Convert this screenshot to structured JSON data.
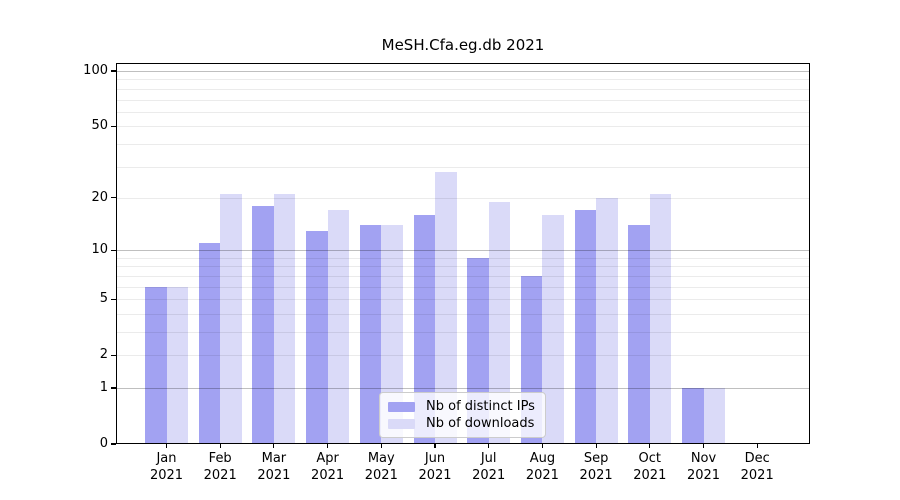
{
  "figure_title": "MeSH.Cfa.eg.db 2021",
  "chart_data": {
    "type": "bar",
    "title": "MeSH.Cfa.eg.db 2021",
    "categories": [
      "Jan",
      "Feb",
      "Mar",
      "Apr",
      "May",
      "Jun",
      "Jul",
      "Aug",
      "Sep",
      "Oct",
      "Nov",
      "Dec"
    ],
    "category_year": "2021",
    "series": [
      {
        "name": "Nb of distinct IPs",
        "color": "#a2a2f2",
        "values": [
          6,
          11,
          18,
          13,
          14,
          16,
          9,
          7,
          17,
          14,
          1,
          0
        ]
      },
      {
        "name": "Nb of downloads",
        "color": "#dadaf8",
        "values": [
          6,
          21,
          21,
          17,
          14,
          28,
          19,
          16,
          20,
          21,
          1,
          0
        ]
      }
    ],
    "xlabel": "",
    "ylabel": "",
    "y_scale": "log1p",
    "ylim": [
      0,
      111
    ],
    "y_ticks": [
      0,
      1,
      2,
      5,
      10,
      20,
      50,
      100
    ],
    "y_major_gridlines": [
      1,
      10,
      100
    ],
    "y_minor_gridlines": [
      2,
      3,
      4,
      5,
      6,
      7,
      8,
      9,
      20,
      30,
      40,
      50,
      60,
      70,
      80,
      90
    ],
    "grid": "on",
    "legend_position": "lower center"
  },
  "legend": {
    "items": [
      {
        "label": "Nb of distinct IPs",
        "color": "#a2a2f2"
      },
      {
        "label": "Nb of downloads",
        "color": "#dadaf8"
      }
    ]
  }
}
